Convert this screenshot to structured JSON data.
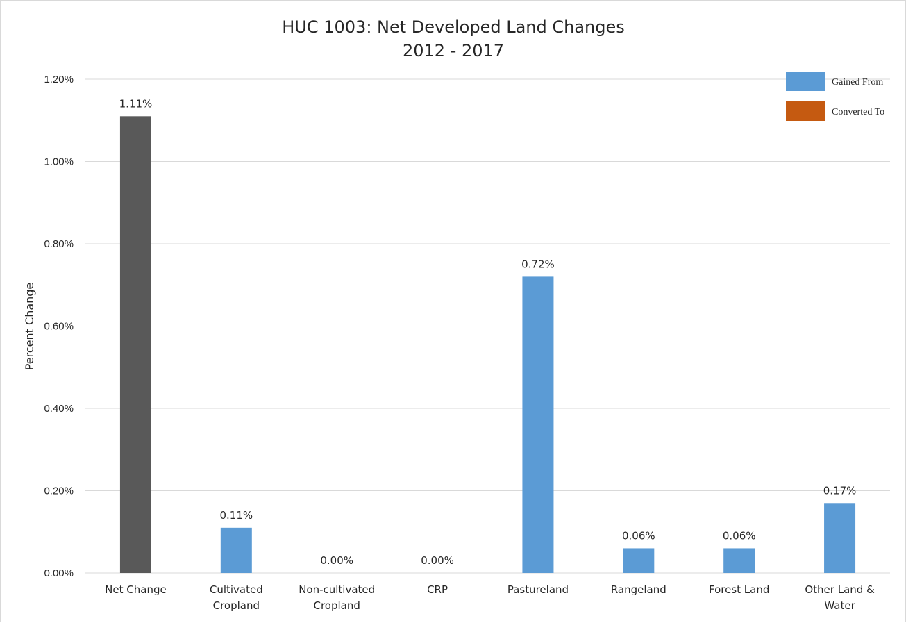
{
  "chart_data": {
    "type": "bar",
    "title": "HUC 1003: Net Developed Land Changes",
    "subtitle": "2012 - 2017",
    "xlabel": "",
    "ylabel": "Percent Change",
    "ylim": [
      0,
      1.2
    ],
    "yticks": [
      "0.00%",
      "0.20%",
      "0.40%",
      "0.60%",
      "0.80%",
      "1.00%",
      "1.20%"
    ],
    "grid": true,
    "legend_position": "top-right",
    "categories": [
      [
        "Net Change"
      ],
      [
        "Cultivated",
        "Cropland"
      ],
      [
        "Non-cultivated",
        "Cropland"
      ],
      [
        "CRP"
      ],
      [
        "Pastureland"
      ],
      [
        "Rangeland"
      ],
      [
        "Forest Land"
      ],
      [
        "Other Land &",
        "Water"
      ]
    ],
    "values": [
      1.11,
      0.11,
      0.0,
      0.0,
      0.72,
      0.06,
      0.06,
      0.17
    ],
    "data_labels": [
      "1.11%",
      "0.11%",
      "0.00%",
      "0.00%",
      "0.72%",
      "0.06%",
      "0.06%",
      "0.17%"
    ],
    "bar_colors": [
      "#595959",
      "#5b9bd5",
      "#5b9bd5",
      "#5b9bd5",
      "#5b9bd5",
      "#5b9bd5",
      "#5b9bd5",
      "#5b9bd5"
    ],
    "series": [
      {
        "name": "Gained From",
        "color": "#5b9bd5"
      },
      {
        "name": "Converted To",
        "color": "#c55a11"
      }
    ],
    "gridline_color": "#d9d9d9"
  }
}
